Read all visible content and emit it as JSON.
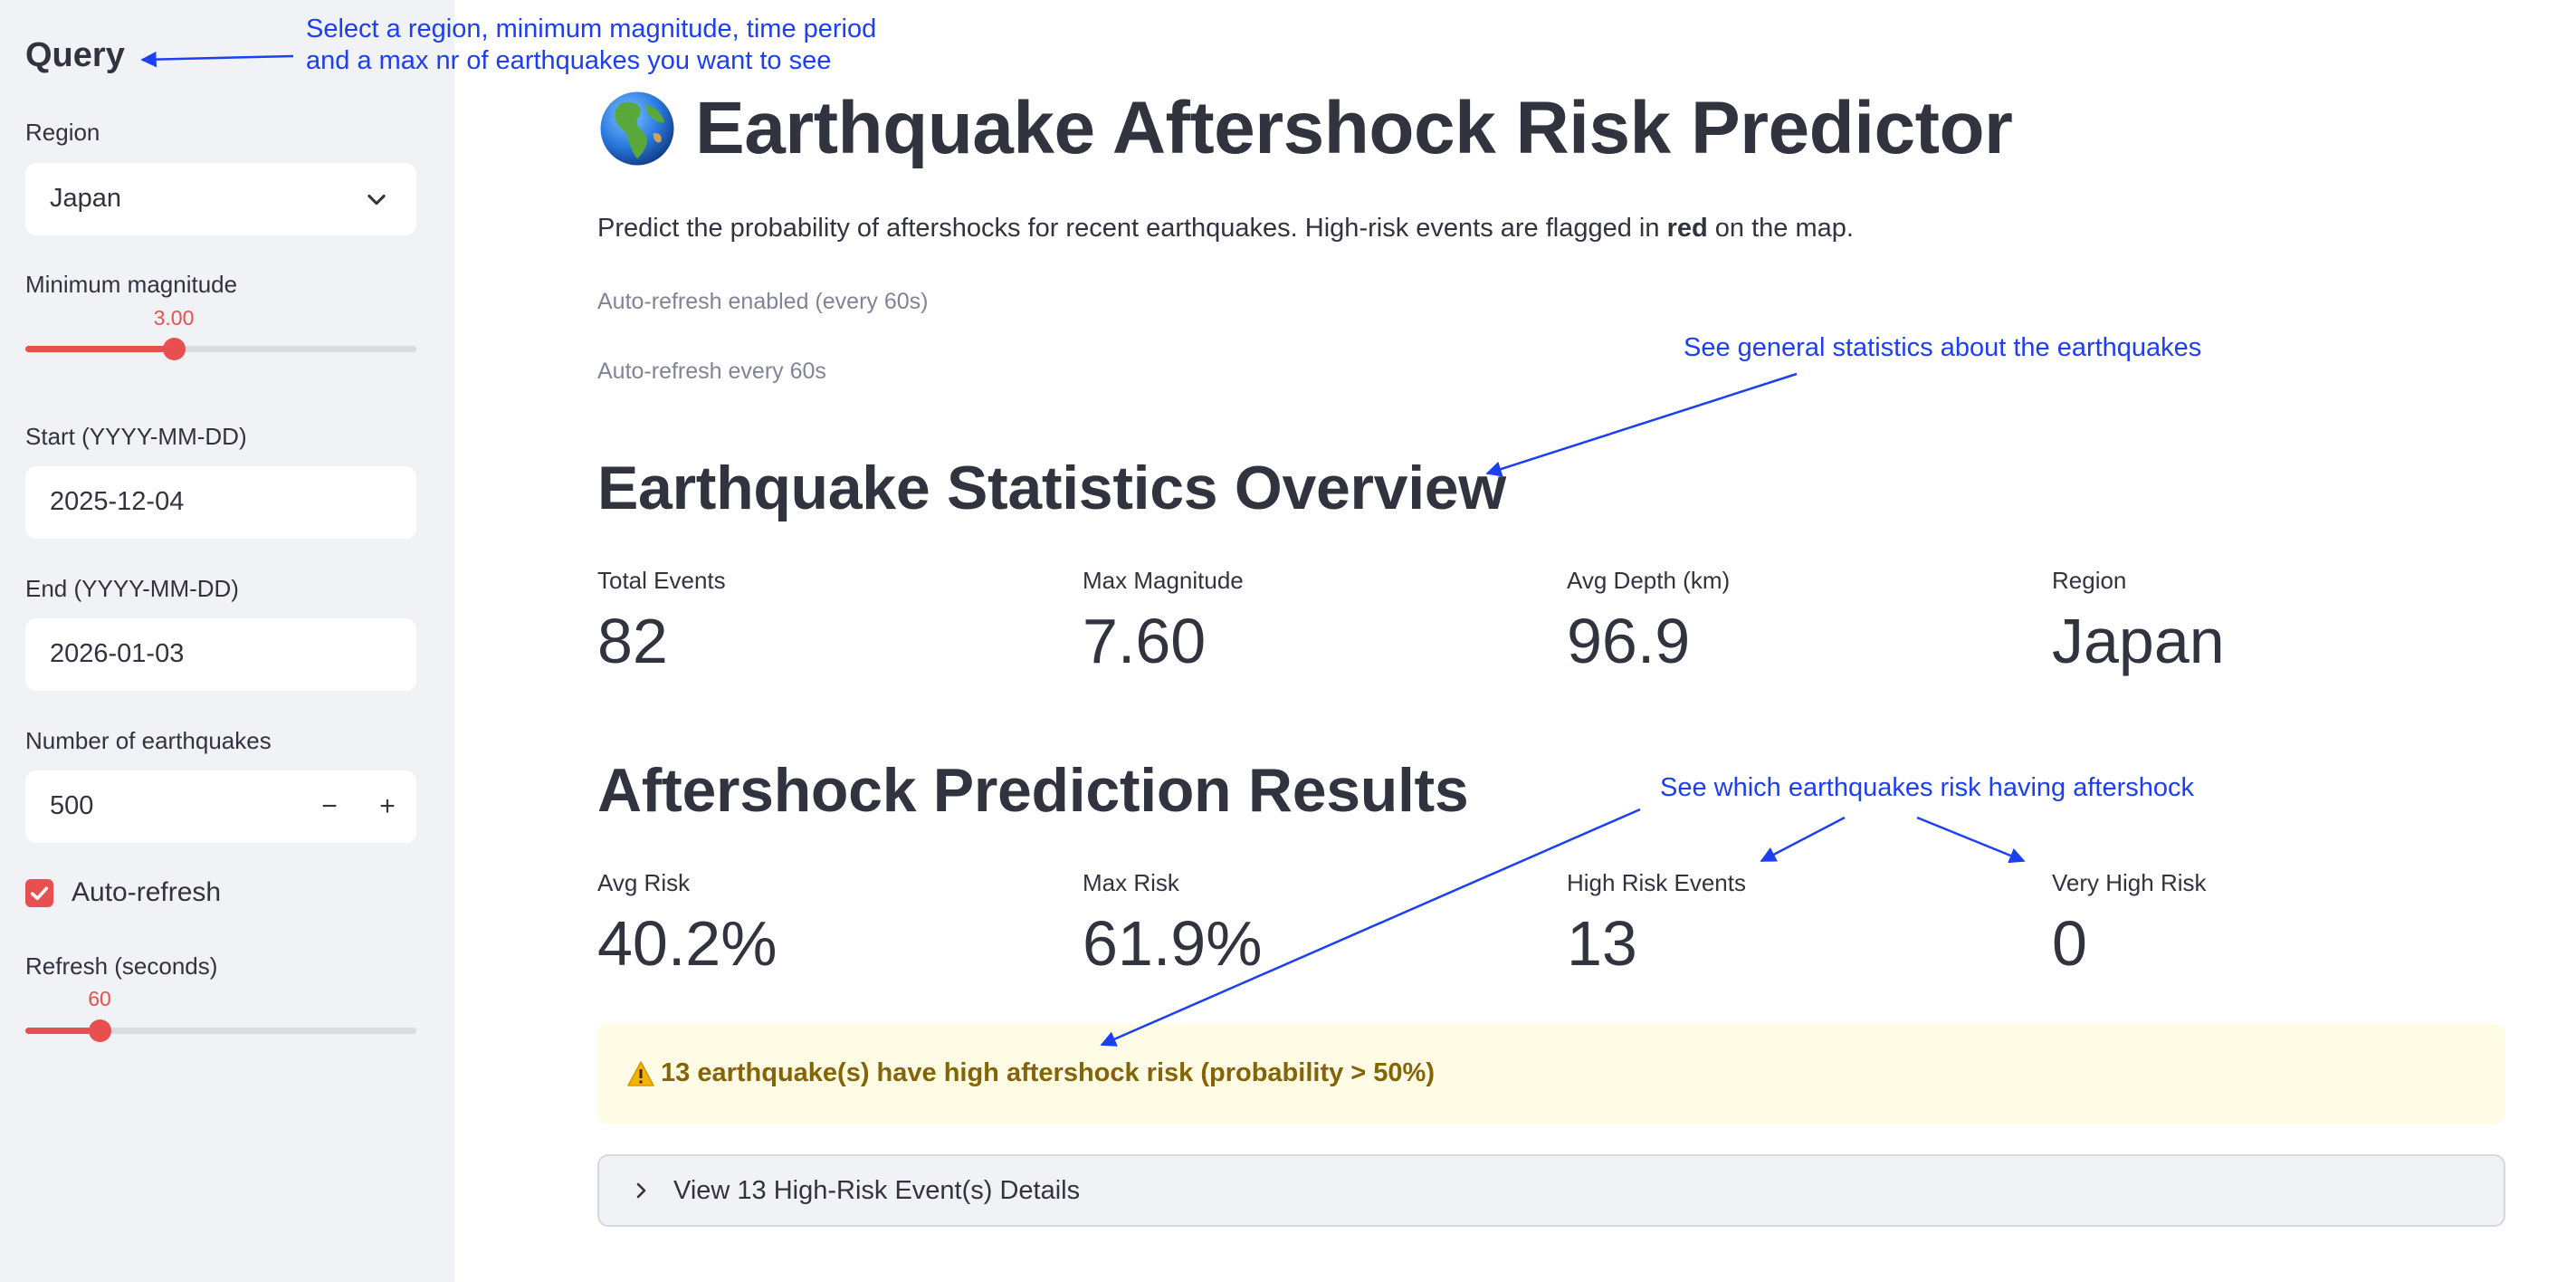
{
  "sidebar": {
    "title": "Query",
    "region": {
      "label": "Region",
      "value": "Japan"
    },
    "min_magnitude": {
      "label": "Minimum magnitude",
      "value": "3.00",
      "fraction": 0.38
    },
    "start": {
      "label": "Start (YYYY-MM-DD)",
      "value": "2025-12-04"
    },
    "end": {
      "label": "End (YYYY-MM-DD)",
      "value": "2026-01-03"
    },
    "num_quakes": {
      "label": "Number of earthquakes",
      "value": "500",
      "minus": "−",
      "plus": "+"
    },
    "auto_refresh": {
      "label": "Auto-refresh",
      "checked": true
    },
    "refresh": {
      "label": "Refresh (seconds)",
      "value": "60",
      "fraction": 0.19
    }
  },
  "main": {
    "title": "Earthquake Aftershock Risk Predictor",
    "intro_before": "Predict the probability of aftershocks for recent earthquakes. High-risk events are flagged in ",
    "intro_bold": "red",
    "intro_after": " on the map.",
    "caption_1": "Auto-refresh enabled (every 60s)",
    "caption_2": "Auto-refresh every 60s",
    "stats_heading": "Earthquake Statistics Overview",
    "stats": [
      {
        "label": "Total Events",
        "value": "82"
      },
      {
        "label": "Max Magnitude",
        "value": "7.60"
      },
      {
        "label": "Avg Depth (km)",
        "value": "96.9"
      },
      {
        "label": "Region",
        "value": "Japan"
      }
    ],
    "pred_heading": "Aftershock Prediction Results",
    "pred": [
      {
        "label": "Avg Risk",
        "value": "40.2%"
      },
      {
        "label": "Max Risk",
        "value": "61.9%"
      },
      {
        "label": "High Risk Events",
        "value": "13"
      },
      {
        "label": "Very High Risk",
        "value": "0"
      }
    ],
    "warning": "13 earthquake(s) have high aftershock risk (probability > 50%)",
    "expander": "View 13 High-Risk Event(s) Details"
  },
  "annotations": {
    "query_line1": "Select a region, minimum magnitude, time period",
    "query_line2": "and a max nr of earthquakes you want to see",
    "stats": "See general statistics about the earthquakes",
    "risk": "See which earthquakes risk having aftershock"
  },
  "colors": {
    "accent": "#e8504f",
    "sidebar_bg": "#f0f2f6",
    "annotation": "#1b3ff1",
    "warning_bg": "#fffce6",
    "warning_text": "#856404"
  },
  "icons": {
    "select": "chevron-down-icon",
    "title": "globe-icon",
    "warning": "warning-icon",
    "expander": "chevron-right-icon",
    "checkbox": "check-icon"
  }
}
